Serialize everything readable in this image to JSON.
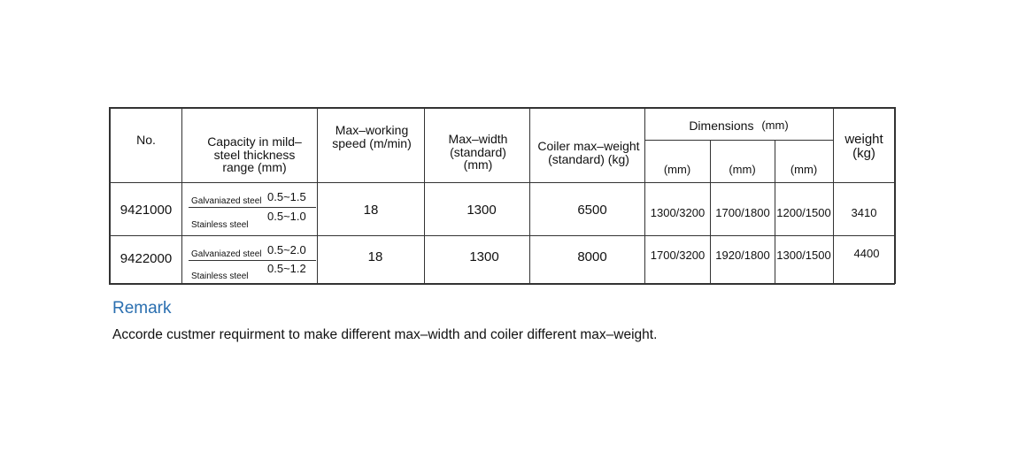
{
  "table": {
    "headers": {
      "no": "No.",
      "capacity": "Capacity in mild–steel thickness range (mm)",
      "speed": "Max–working speed (m/min)",
      "width": "Max–width (standard) (mm)",
      "coiler": "Coiler max–weight (standard) (kg)",
      "dimensions": "Dimensions",
      "dimensions_unit": "(mm)",
      "dim_sub": [
        "(mm)",
        "(mm)",
        "(mm)"
      ],
      "weight": "weight (kg)"
    },
    "rows": [
      {
        "no": "9421000",
        "galv_label": "Galvaniazed steel",
        "galv_range": "0.5~1.5",
        "stainless_label": "Stainless steel",
        "stainless_range": "0.5~1.0",
        "speed": "18",
        "width": "1300",
        "coiler": "6500",
        "dims": [
          "1300/3200",
          "1700/1800",
          "1200/1500"
        ],
        "weight": "3410"
      },
      {
        "no": "9422000",
        "galv_label": "Galvaniazed steel",
        "galv_range": "0.5~2.0",
        "stainless_label": "Stainless steel",
        "stainless_range": "0.5~1.2",
        "speed": "18",
        "width": "1300",
        "coiler": "8000",
        "dims": [
          "1700/3200",
          "1920/1800",
          "1300/1500"
        ],
        "weight": "4400"
      }
    ]
  },
  "remark": {
    "title": "Remark",
    "text": "Accorde custmer requirment to make different max–width and coiler different max–weight."
  },
  "colors": {
    "remark_title": "#2a6fb0",
    "border": "#333333"
  }
}
